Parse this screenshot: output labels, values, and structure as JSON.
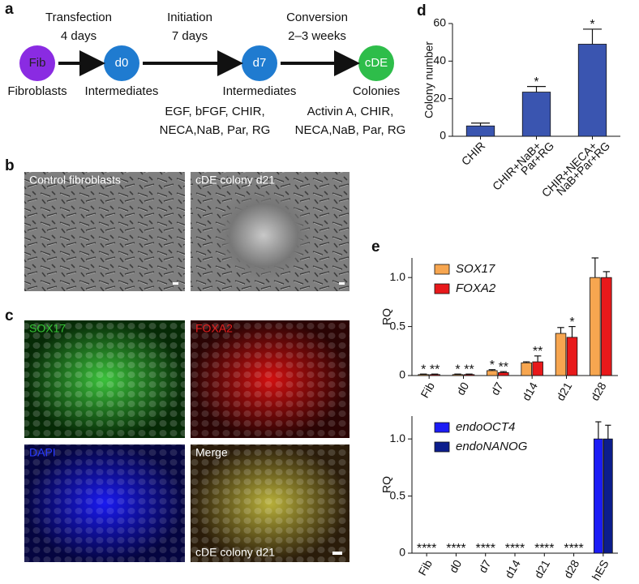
{
  "panel_labels": [
    "a",
    "b",
    "c",
    "d",
    "e"
  ],
  "schematic": {
    "nodes": [
      {
        "label": "Fib",
        "caption": "Fibroblasts",
        "color": "#8a2be2"
      },
      {
        "label": "d0",
        "caption": "Intermediates",
        "color": "#1f7bd0"
      },
      {
        "label": "d7",
        "caption": "Intermediates",
        "color": "#1f7bd0"
      },
      {
        "label": "cDE",
        "caption": "Colonies",
        "color": "#2ebd4a"
      }
    ],
    "steps": [
      {
        "name": "Transfection",
        "duration": "4 days"
      },
      {
        "name": "Initiation",
        "duration": "7 days"
      },
      {
        "name": "Conversion",
        "duration": "2–3 weeks"
      }
    ],
    "factors": [
      [
        "EGF, bFGF, CHIR,",
        "NECA,NaB, Par, RG"
      ],
      [
        "Activin A, CHIR,",
        "NECA,NaB, Par, RG"
      ]
    ]
  },
  "micrographs": [
    "Control fibroblasts",
    "cDE colony d21",
    "SOX17",
    "FOXA2",
    "DAPI",
    "Merge",
    "cDE colony d21"
  ],
  "chart_data": [
    {
      "type": "bar",
      "y_label": "Colony number",
      "categories": [
        [
          "CHIR"
        ],
        [
          "CHIR+NaB+",
          "Par+RG"
        ],
        [
          "CHIR+NECA+",
          "NaB+Par+RG"
        ]
      ],
      "series": [
        {
          "name": "Colony number",
          "color": "#3a55b0",
          "values": [
            5.5,
            23.5,
            49
          ],
          "errors": [
            1.5,
            3,
            8
          ],
          "stars": [
            null,
            "*",
            "*"
          ]
        }
      ],
      "ylim": [
        0,
        60
      ],
      "yticks": [
        0,
        20,
        40,
        60
      ]
    },
    {
      "type": "bar",
      "y_label": "RQ",
      "categories": [
        [
          "Fib"
        ],
        [
          "d0"
        ],
        [
          "d7"
        ],
        [
          "d14"
        ],
        [
          "d21"
        ],
        [
          "d28"
        ]
      ],
      "series": [
        {
          "name": "SOX17",
          "color": "#f7a650",
          "values": [
            0.01,
            0.01,
            0.05,
            0.13,
            0.43,
            1.0
          ],
          "errors": [
            0.005,
            0.005,
            0.01,
            0.01,
            0.06,
            0.2
          ],
          "stars": [
            "*",
            "*",
            "*",
            null,
            null,
            null
          ]
        },
        {
          "name": "FOXA2",
          "color": "#e8191b",
          "values": [
            0.01,
            0.01,
            0.03,
            0.14,
            0.39,
            1.0
          ],
          "errors": [
            0.005,
            0.005,
            0.01,
            0.06,
            0.11,
            0.06
          ],
          "stars": [
            "**",
            "**",
            "**",
            "**",
            "*",
            null
          ]
        }
      ],
      "ylim": [
        0,
        1.2
      ],
      "yticks": [
        0,
        0.5,
        {
          "value": 1,
          "label": "1.0"
        }
      ],
      "legend": "upper-left"
    },
    {
      "type": "bar",
      "y_label": "RQ",
      "categories": [
        [
          "Fib"
        ],
        [
          "d0"
        ],
        [
          "d7"
        ],
        [
          "d14"
        ],
        [
          "d21"
        ],
        [
          "d28"
        ],
        [
          "hES"
        ]
      ],
      "series": [
        {
          "name": "endoOCT4",
          "color": "#1c1cf5",
          "values": [
            0,
            0,
            0,
            0,
            0,
            0,
            1.0
          ],
          "errors": [
            0,
            0,
            0,
            0,
            0,
            0,
            0.15
          ],
          "stars": [
            "**",
            "**",
            "**",
            "**",
            "**",
            "**",
            null
          ]
        },
        {
          "name": "endoNANOG",
          "color": "#0c1d8c",
          "values": [
            0,
            0,
            0,
            0,
            0,
            0,
            1.0
          ],
          "errors": [
            0,
            0,
            0,
            0,
            0,
            0,
            0.12
          ],
          "stars": [
            "**",
            "**",
            "**",
            "**",
            "**",
            "**",
            null
          ]
        }
      ],
      "ylim": [
        0,
        1.2
      ],
      "yticks": [
        0,
        0.5,
        {
          "value": 1,
          "label": "1.0"
        }
      ],
      "legend": "upper-left"
    }
  ]
}
